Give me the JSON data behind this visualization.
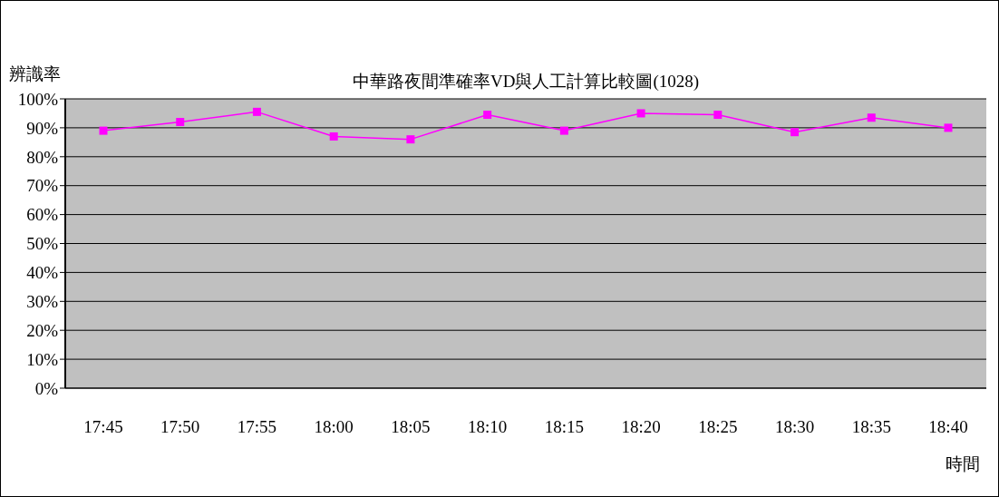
{
  "chart_data": {
    "type": "line",
    "title": "中華路夜間準確率VD與人工計算比較圖(1028)",
    "xlabel": "時間",
    "ylabel": "辨識率",
    "categories": [
      "17:45",
      "17:50",
      "17:55",
      "18:00",
      "18:05",
      "18:10",
      "18:15",
      "18:20",
      "18:25",
      "18:30",
      "18:35",
      "18:40"
    ],
    "series": [
      {
        "color": "#ff00ff",
        "values": [
          89,
          92,
          95.5,
          87,
          86,
          94.5,
          89,
          95,
          94.5,
          88.5,
          93.5,
          90
        ]
      }
    ],
    "ylim": [
      0,
      100
    ],
    "yticks": [
      {
        "value": 0,
        "label": "0%"
      },
      {
        "value": 10,
        "label": "10%"
      },
      {
        "value": 20,
        "label": "20%"
      },
      {
        "value": 30,
        "label": "30%"
      },
      {
        "value": 40,
        "label": "40%"
      },
      {
        "value": 50,
        "label": "50%"
      },
      {
        "value": 60,
        "label": "60%"
      },
      {
        "value": 70,
        "label": "70%"
      },
      {
        "value": 80,
        "label": "80%"
      },
      {
        "value": 90,
        "label": "90%"
      },
      {
        "value": 100,
        "label": "100%"
      }
    ],
    "grid": "y",
    "marker": "square",
    "line_style": "solid"
  }
}
